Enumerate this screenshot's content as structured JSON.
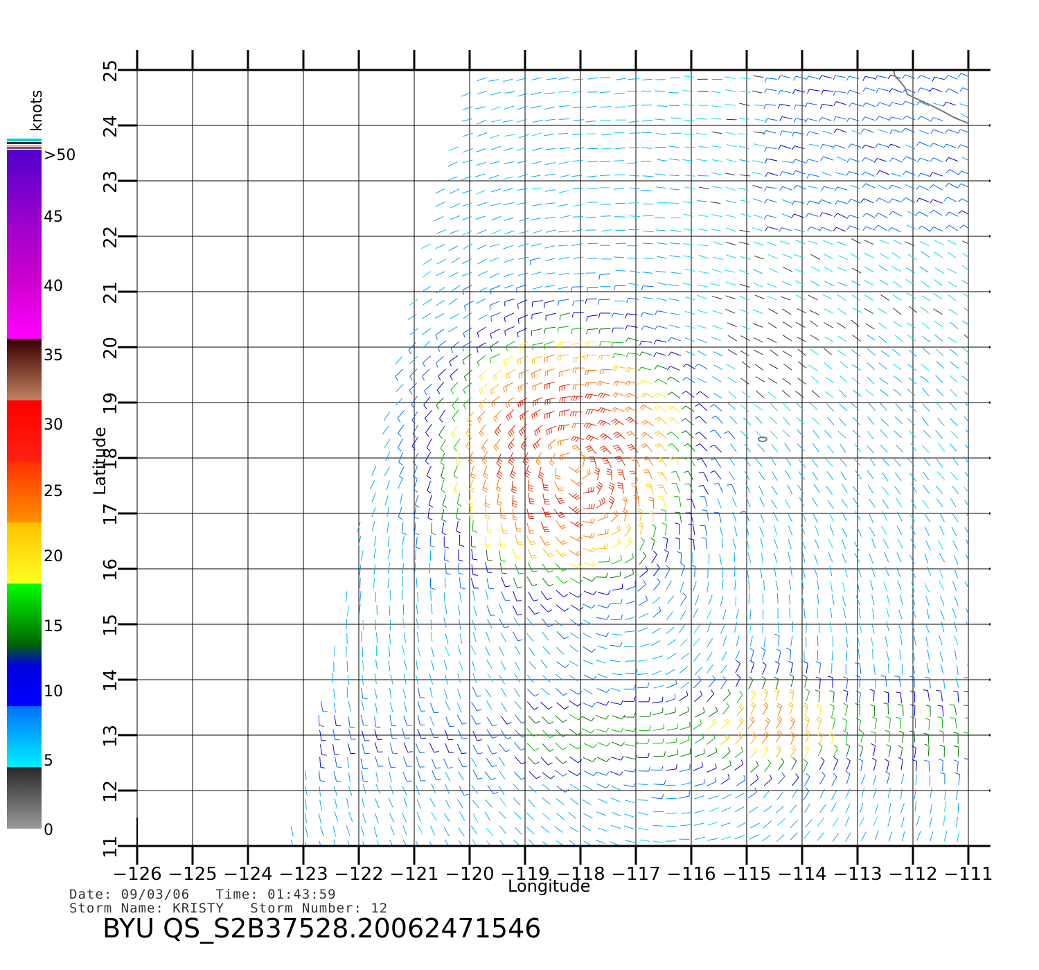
{
  "map": {
    "lon_range": [
      -126,
      -110.6
    ],
    "lat_range": [
      11,
      25
    ],
    "lon_ticks": [
      -126,
      -125,
      -124,
      -123,
      -122,
      -121,
      -120,
      -119,
      -118,
      -117,
      -116,
      -115,
      -114,
      -113,
      -112,
      -111
    ],
    "lon_tick_labels": [
      "−126",
      "−125",
      "−124",
      "−123",
      "−122",
      "−121",
      "−120",
      "−119",
      "−118",
      "−117",
      "−116",
      "−115",
      "−114",
      "−113",
      "−112",
      "−111"
    ],
    "lat_ticks": [
      11,
      12,
      13,
      14,
      15,
      16,
      17,
      18,
      19,
      20,
      21,
      22,
      23,
      24,
      25
    ],
    "lat_tick_labels": [
      "11",
      "12",
      "13",
      "14",
      "15",
      "16",
      "17",
      "18",
      "19",
      "20",
      "21",
      "22",
      "23",
      "24",
      "25"
    ],
    "xlabel": "Longitude",
    "ylabel": "Latitude",
    "grid": true,
    "storm_center": {
      "lon": -118.2,
      "lat": 18.1
    },
    "secondary_storm_center": {
      "lon": -114.5,
      "lat": 13.2
    },
    "coastline_color": "#777777"
  },
  "colorbar": {
    "title": "knots",
    "labels": [
      ">50",
      "45",
      "40",
      "35",
      "30",
      "25",
      "20",
      "15",
      "10",
      "5",
      "0"
    ],
    "colors": [
      "#9a9a9a",
      "#2a2a2a",
      "#00e8ff",
      "#0070ff",
      "#0000ff",
      "#008800",
      "#00ff00",
      "#ffff00",
      "#ffb000",
      "#ff6000",
      "#ff0000",
      "#a05030",
      "#3a0000",
      "#ff00ff",
      "#8800cc",
      "#5000cc"
    ]
  },
  "footer": {
    "date_line": "Date: 09/03/06   Time: 01:43:59",
    "storm_line": "Storm Name: KRISTY   Storm Number: 12",
    "product": "BYU QS_S2B37528.20062471546"
  }
}
